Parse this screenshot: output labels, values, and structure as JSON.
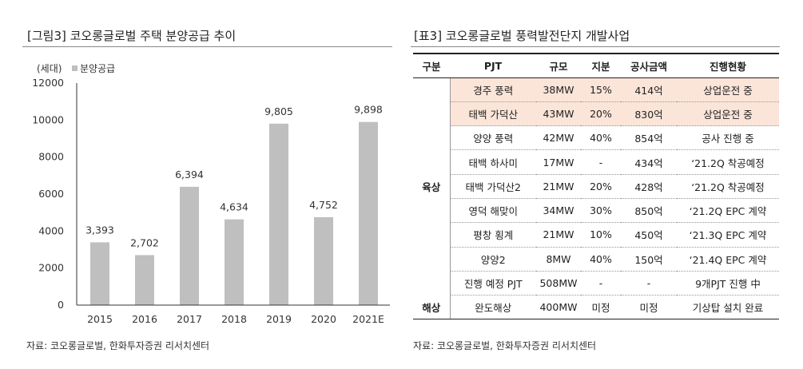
{
  "left_panel": {
    "title": "[그림3]   코오롱글로벌 주택 분양공급 추이",
    "source": "자료: 코오롱글로벌, 한화투자증권 리서치센터"
  },
  "right_panel": {
    "title": "[표3]   코오롱글로벌 풍력발전단지 개발사업",
    "source": "자료: 코오롱글로벌, 한화투자증권 리서치센터"
  },
  "chart_data": {
    "type": "bar",
    "unit_label": "(세대)",
    "legend": "분양공급",
    "categories": [
      "2015",
      "2016",
      "2017",
      "2018",
      "2019",
      "2020",
      "2021E"
    ],
    "values": [
      3393,
      2702,
      6394,
      4634,
      9805,
      4752,
      9898
    ],
    "value_labels": [
      "3,393",
      "2,702",
      "6,394",
      "4,634",
      "9,805",
      "4,752",
      "9,898"
    ],
    "y_ticks": [
      "0",
      "2000",
      "4000",
      "6000",
      "8000",
      "10000",
      "12000"
    ],
    "ylim": [
      0,
      12000
    ],
    "bar_color": "#bfbfbf"
  },
  "table": {
    "headers": [
      "구분",
      "PJT",
      "규모",
      "지분",
      "공사금액",
      "진행현황"
    ],
    "land_label": "육상",
    "sea_label": "해상",
    "highlight_color": "#fbe4d8",
    "land_rows": [
      {
        "pjt": "경주 풍력",
        "size": "38MW",
        "share": "15%",
        "amount": "414억",
        "status": "상업운전 중",
        "highlight": true
      },
      {
        "pjt": "태백 가덕산",
        "size": "43MW",
        "share": "20%",
        "amount": "830억",
        "status": "상업운전 중",
        "highlight": true
      },
      {
        "pjt": "양양 풍력",
        "size": "42MW",
        "share": "40%",
        "amount": "854억",
        "status": "공사 진행 중",
        "highlight": false
      },
      {
        "pjt": "태백 하사미",
        "size": "17MW",
        "share": "-",
        "amount": "434억",
        "status": "‘21.2Q 착공예정",
        "highlight": false
      },
      {
        "pjt": "태백 가덕산2",
        "size": "21MW",
        "share": "20%",
        "amount": "428억",
        "status": "‘21.2Q 착공예정",
        "highlight": false
      },
      {
        "pjt": "영덕 해맞이",
        "size": "34MW",
        "share": "30%",
        "amount": "850억",
        "status": "‘21.2Q EPC 계약",
        "highlight": false
      },
      {
        "pjt": "평창 횡계",
        "size": "21MW",
        "share": "10%",
        "amount": "450억",
        "status": "‘21.3Q EPC 계약",
        "highlight": false
      },
      {
        "pjt": "양양2",
        "size": "8MW",
        "share": "40%",
        "amount": "150억",
        "status": "‘21.4Q EPC 계약",
        "highlight": false
      },
      {
        "pjt": "진행 예정 PJT",
        "size": "508MW",
        "share": "-",
        "amount": "-",
        "status": "9개PJT 진행 中",
        "highlight": false
      }
    ],
    "sea_rows": [
      {
        "pjt": "완도해상",
        "size": "400MW",
        "share": "미정",
        "amount": "미정",
        "status": "기상탑 설치 완료",
        "highlight": false
      }
    ]
  }
}
